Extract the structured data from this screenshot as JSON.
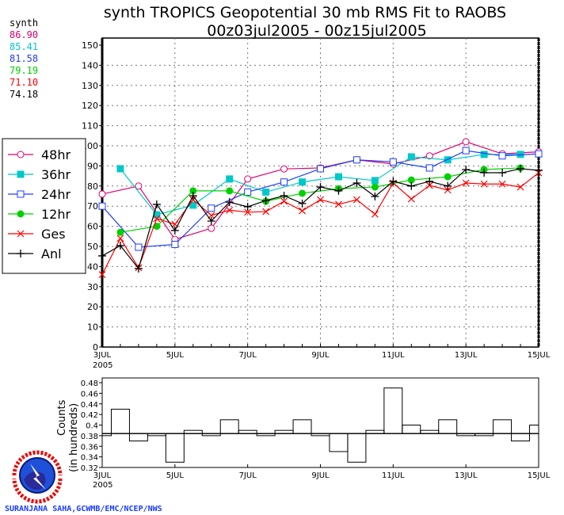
{
  "chart_data": [
    {
      "type": "line",
      "title": "synth TROPICS Geopotential 30 mb RMS Fit to RAOBS",
      "subtitle": "00z03jul2005 - 00z15jul2005",
      "x_unit": "days (12-hourly), July 2005",
      "x_ticks": [
        "3JUL",
        "5JUL",
        "7JUL",
        "9JUL",
        "11JUL",
        "13JUL",
        "15JUL"
      ],
      "x_tick_year": "2005",
      "ylim": [
        0,
        150
      ],
      "y_ticks": [
        0,
        10,
        20,
        30,
        40,
        50,
        60,
        70,
        80,
        90,
        100,
        110,
        120,
        130,
        140,
        150
      ],
      "grid": true,
      "legend_placement": "left",
      "stats_label": "synth",
      "series": [
        {
          "name": "48hr",
          "color": "#e0006e",
          "marker": "open-circle",
          "stat": "86.90",
          "x": [
            3,
            4,
            5,
            6,
            7,
            8,
            9,
            10,
            11,
            12,
            13,
            14,
            15
          ],
          "y": [
            76,
            80,
            53.5,
            59,
            83.5,
            88.5,
            89,
            93,
            91,
            95,
            102,
            96,
            97
          ]
        },
        {
          "name": "36hr",
          "color": "#00c8c8",
          "marker": "filled-square",
          "stat": "85.41",
          "x": [
            3.5,
            4.5,
            5.5,
            6.5,
            7.5,
            8.5,
            9.5,
            10.5,
            11.5,
            12.5,
            13.5,
            14.5
          ],
          "y": [
            88.6,
            65.7,
            70.5,
            83.5,
            77,
            82,
            84.6,
            82.7,
            94.5,
            93,
            95.7,
            95.7
          ]
        },
        {
          "name": "24hr",
          "color": "#1e3cff",
          "marker": "open-square",
          "stat": "81.58",
          "x": [
            3,
            4,
            5,
            6,
            7,
            8,
            9,
            10,
            11,
            12,
            13,
            14,
            15
          ],
          "y": [
            70,
            49.6,
            51,
            69,
            77,
            82,
            88.6,
            93,
            92,
            89,
            97.6,
            95,
            96
          ]
        },
        {
          "name": "12hr",
          "color": "#00d000",
          "marker": "filled-circle",
          "stat": "79.19",
          "x": [
            3.5,
            4.5,
            5.5,
            6.5,
            7.5,
            8.5,
            9.5,
            10.5,
            11.5,
            12.5,
            13.5,
            14.5
          ],
          "y": [
            57,
            60,
            77.6,
            77.6,
            72.4,
            76.4,
            78.7,
            79.5,
            83,
            84.6,
            88.2,
            89
          ]
        },
        {
          "name": "Ges",
          "color": "#ff0000",
          "marker": "x",
          "stat": "71.10",
          "x": [
            3,
            3.5,
            4,
            4.5,
            5,
            5.5,
            6,
            6.5,
            7,
            7.5,
            8,
            8.5,
            9,
            9.5,
            10,
            10.5,
            11,
            11.5,
            12,
            12.5,
            13,
            13.5,
            14,
            14.5,
            15
          ],
          "y": [
            36,
            54,
            39.4,
            63.8,
            61,
            73.2,
            65.4,
            68,
            67,
            67.3,
            72.4,
            67.7,
            73.2,
            70.9,
            73.2,
            66,
            81.5,
            73.6,
            80.3,
            78,
            81.5,
            81,
            81,
            79.5,
            86.6
          ]
        },
        {
          "name": "Anl",
          "color": "#000000",
          "marker": "plus",
          "stat": "74.18",
          "x": [
            3,
            3.5,
            4,
            4.5,
            5,
            5.5,
            6,
            6.5,
            7,
            7.5,
            8,
            8.5,
            9,
            9.5,
            10,
            10.5,
            11,
            11.5,
            12,
            12.5,
            13,
            13.5,
            14,
            14.5,
            15
          ],
          "y": [
            45.3,
            50.4,
            39,
            70.9,
            57.9,
            75.2,
            62.6,
            72,
            69.7,
            72.8,
            75.2,
            71.3,
            79.5,
            77.6,
            81.5,
            74.8,
            82.3,
            80,
            82.3,
            80,
            88.2,
            86.6,
            86.6,
            88.6,
            87.8
          ]
        }
      ]
    },
    {
      "type": "bar",
      "ylabel": "Counts",
      "ylabel2": "(in hundreds)",
      "ylim": [
        0.32,
        0.48
      ],
      "y_ticks": [
        "0.32",
        "0.34",
        "0.36",
        "0.38",
        "0.4",
        "0.42",
        "0.44",
        "0.46",
        "0.48"
      ],
      "x_ticks": [
        "3JUL",
        "5JUL",
        "7JUL",
        "9JUL",
        "11JUL",
        "13JUL",
        "15JUL"
      ],
      "x_tick_year": "2005",
      "x": [
        3,
        3.5,
        4,
        4.5,
        5,
        5.5,
        6,
        6.5,
        7,
        7.5,
        8,
        8.5,
        9,
        9.5,
        10,
        10.5,
        11,
        11.5,
        12,
        12.5,
        13,
        13.5,
        14,
        14.5,
        15
      ],
      "values": [
        0.38,
        0.43,
        0.37,
        0.38,
        0.33,
        0.39,
        0.38,
        0.41,
        0.39,
        0.38,
        0.39,
        0.41,
        0.38,
        0.35,
        0.33,
        0.39,
        0.47,
        0.4,
        0.39,
        0.41,
        0.38,
        0.38,
        0.41,
        0.37,
        0.4
      ],
      "mean": 0.384
    }
  ],
  "logo": "NATIONAL WEATHER SERVICE",
  "credit": "SURANJANA SAHA,GCWMB/EMC/NCEP/NWS"
}
